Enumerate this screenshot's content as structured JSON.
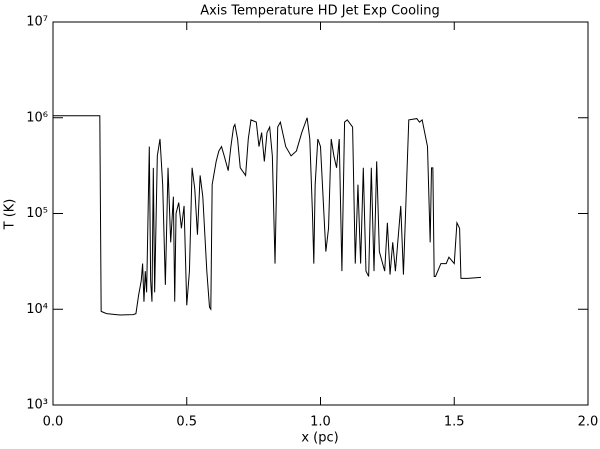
{
  "chart_data": {
    "type": "line",
    "title": "Axis Temperature HD Jet Exp Cooling",
    "xlabel": "x (pc)",
    "ylabel": "T (K)",
    "ylog": true,
    "grid": false,
    "xlim": [
      0,
      2.0
    ],
    "xticks": [
      {
        "value": 0,
        "label": "0.0"
      },
      0.5,
      {
        "value": 1,
        "label": "1.0"
      },
      1.5,
      {
        "value": 2,
        "label": "2.0"
      }
    ],
    "ylim": [
      1000,
      10000000
    ],
    "yticks": [
      {
        "value": 1000,
        "label": "10³"
      },
      {
        "value": 10000,
        "label": "10⁴"
      },
      {
        "value": 100000,
        "label": "10⁵"
      },
      {
        "value": 1000000,
        "label": "10⁶"
      },
      {
        "value": 10000000,
        "label": "10⁷"
      }
    ],
    "x": [
      0.0,
      0.175,
      0.18,
      0.2,
      0.25,
      0.3,
      0.31,
      0.32,
      0.33,
      0.335,
      0.34,
      0.345,
      0.35,
      0.36,
      0.365,
      0.37,
      0.375,
      0.38,
      0.39,
      0.4,
      0.41,
      0.42,
      0.43,
      0.44,
      0.45,
      0.455,
      0.46,
      0.47,
      0.48,
      0.49,
      0.5,
      0.51,
      0.52,
      0.53,
      0.54,
      0.55,
      0.56,
      0.575,
      0.585,
      0.59,
      0.595,
      0.61,
      0.62,
      0.63,
      0.64,
      0.655,
      0.665,
      0.675,
      0.68,
      0.69,
      0.7,
      0.72,
      0.73,
      0.74,
      0.76,
      0.77,
      0.78,
      0.79,
      0.8,
      0.81,
      0.82,
      0.83,
      0.84,
      0.85,
      0.87,
      0.89,
      0.91,
      0.93,
      0.95,
      0.96,
      0.97,
      0.975,
      0.98,
      0.99,
      1.0,
      1.02,
      1.03,
      1.04,
      1.05,
      1.06,
      1.07,
      1.08,
      1.09,
      1.1,
      1.12,
      1.13,
      1.14,
      1.15,
      1.16,
      1.17,
      1.18,
      1.19,
      1.2,
      1.21,
      1.22,
      1.24,
      1.25,
      1.26,
      1.27,
      1.28,
      1.3,
      1.31,
      1.33,
      1.36,
      1.37,
      1.38,
      1.4,
      1.41,
      1.415,
      1.42,
      1.425,
      1.43,
      1.45,
      1.47,
      1.48,
      1.5,
      1.51,
      1.52,
      1.525,
      1.55,
      1.6
    ],
    "series": [
      {
        "color": "#000000",
        "values": [
          1050000,
          1050000,
          9500,
          9000,
          8700,
          8800,
          9000,
          14000,
          20000,
          30000,
          12000,
          25000,
          15000,
          500000,
          20000,
          12000,
          300000,
          15000,
          400000,
          600000,
          200000,
          18000,
          300000,
          50000,
          150000,
          12000,
          100000,
          130000,
          70000,
          120000,
          11000,
          25000,
          300000,
          180000,
          60000,
          250000,
          150000,
          25000,
          10500,
          10000,
          200000,
          350000,
          450000,
          500000,
          400000,
          280000,
          500000,
          800000,
          850000,
          600000,
          300000,
          250000,
          600000,
          950000,
          900000,
          500000,
          700000,
          350000,
          700000,
          800000,
          400000,
          30000,
          800000,
          900000,
          500000,
          400000,
          450000,
          700000,
          1000000,
          600000,
          100000,
          30000,
          200000,
          600000,
          500000,
          40000,
          70000,
          600000,
          400000,
          300000,
          600000,
          25000,
          900000,
          950000,
          800000,
          30000,
          200000,
          30000,
          300000,
          25000,
          22000,
          300000,
          25000,
          350000,
          40000,
          25000,
          80000,
          23000,
          50000,
          25000,
          120000,
          23000,
          950000,
          980000,
          900000,
          950000,
          500000,
          50000,
          300000,
          300000,
          22000,
          22000,
          30000,
          30000,
          35000,
          30000,
          80000,
          70000,
          21000,
          21000,
          21500
        ]
      }
    ]
  }
}
